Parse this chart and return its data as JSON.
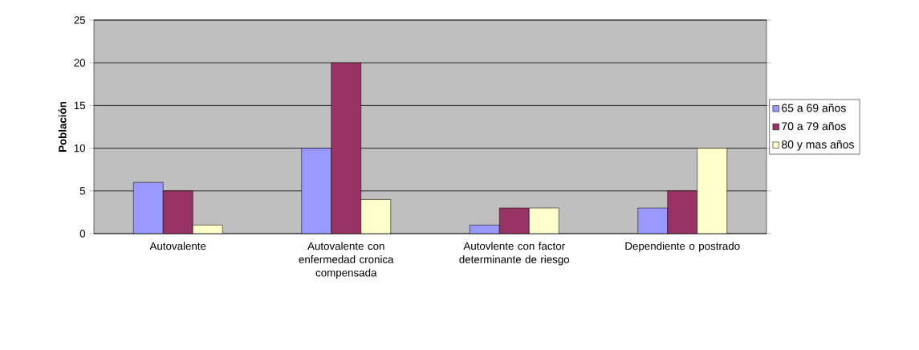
{
  "chart_data": {
    "type": "bar",
    "ylabel": "Población",
    "categories": [
      "Autovalente",
      "Autovalente con enfermedad cronica compensada",
      "Autovlente con factor determinante de riesgo",
      "Dependiente o postrado"
    ],
    "series": [
      {
        "name": "65 a 69 años",
        "color": "#9999ff",
        "values": [
          6,
          10,
          1,
          3
        ]
      },
      {
        "name": "70 a 79 años",
        "color": "#993366",
        "values": [
          5,
          20,
          3,
          5
        ]
      },
      {
        "name": "80 y mas años",
        "color": "#ffffcc",
        "values": [
          1,
          4,
          3,
          10
        ]
      }
    ],
    "ylim": [
      0,
      25
    ],
    "yticks": [
      0,
      5,
      10,
      15,
      20,
      25
    ],
    "grid": "y",
    "legend": "right"
  }
}
